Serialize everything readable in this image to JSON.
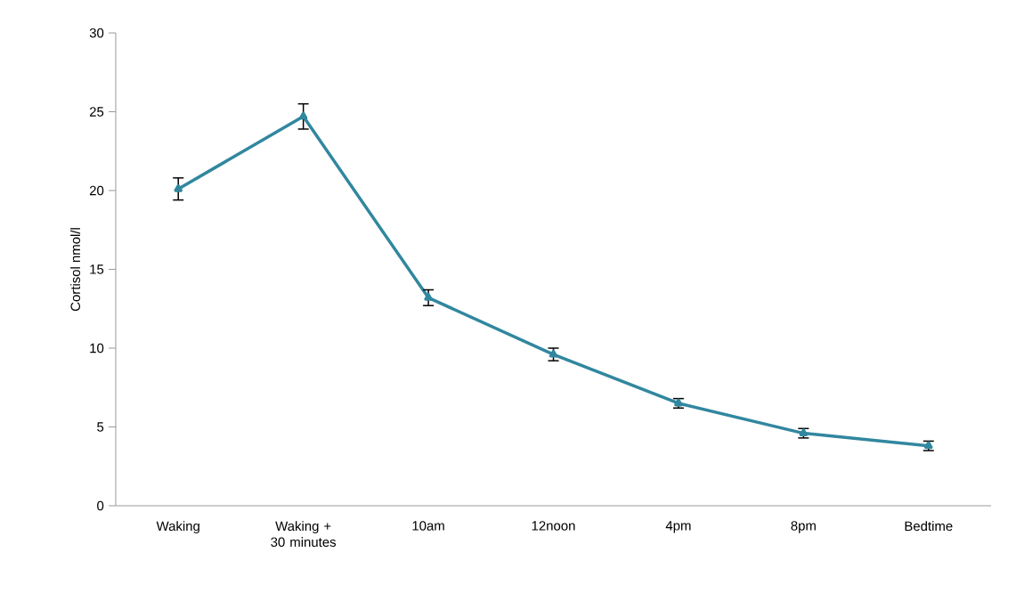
{
  "chart_data": {
    "type": "line",
    "ylabel": "Cortisol nmol/l",
    "categories": [
      "Waking",
      "Waking + 30 minutes",
      "10am",
      "12noon",
      "4pm",
      "8pm",
      "Bedtime"
    ],
    "series": [
      {
        "color": "#31879f",
        "values": [
          20.1,
          24.7,
          13.2,
          9.6,
          6.5,
          4.6,
          3.8
        ],
        "errors": [
          0.7,
          0.8,
          0.5,
          0.4,
          0.3,
          0.3,
          0.3
        ]
      }
    ],
    "ylim": [
      0,
      30
    ],
    "yticks": [
      0,
      5,
      10,
      15,
      20,
      25,
      30
    ],
    "marker": "triangle",
    "line_style": "solid"
  }
}
